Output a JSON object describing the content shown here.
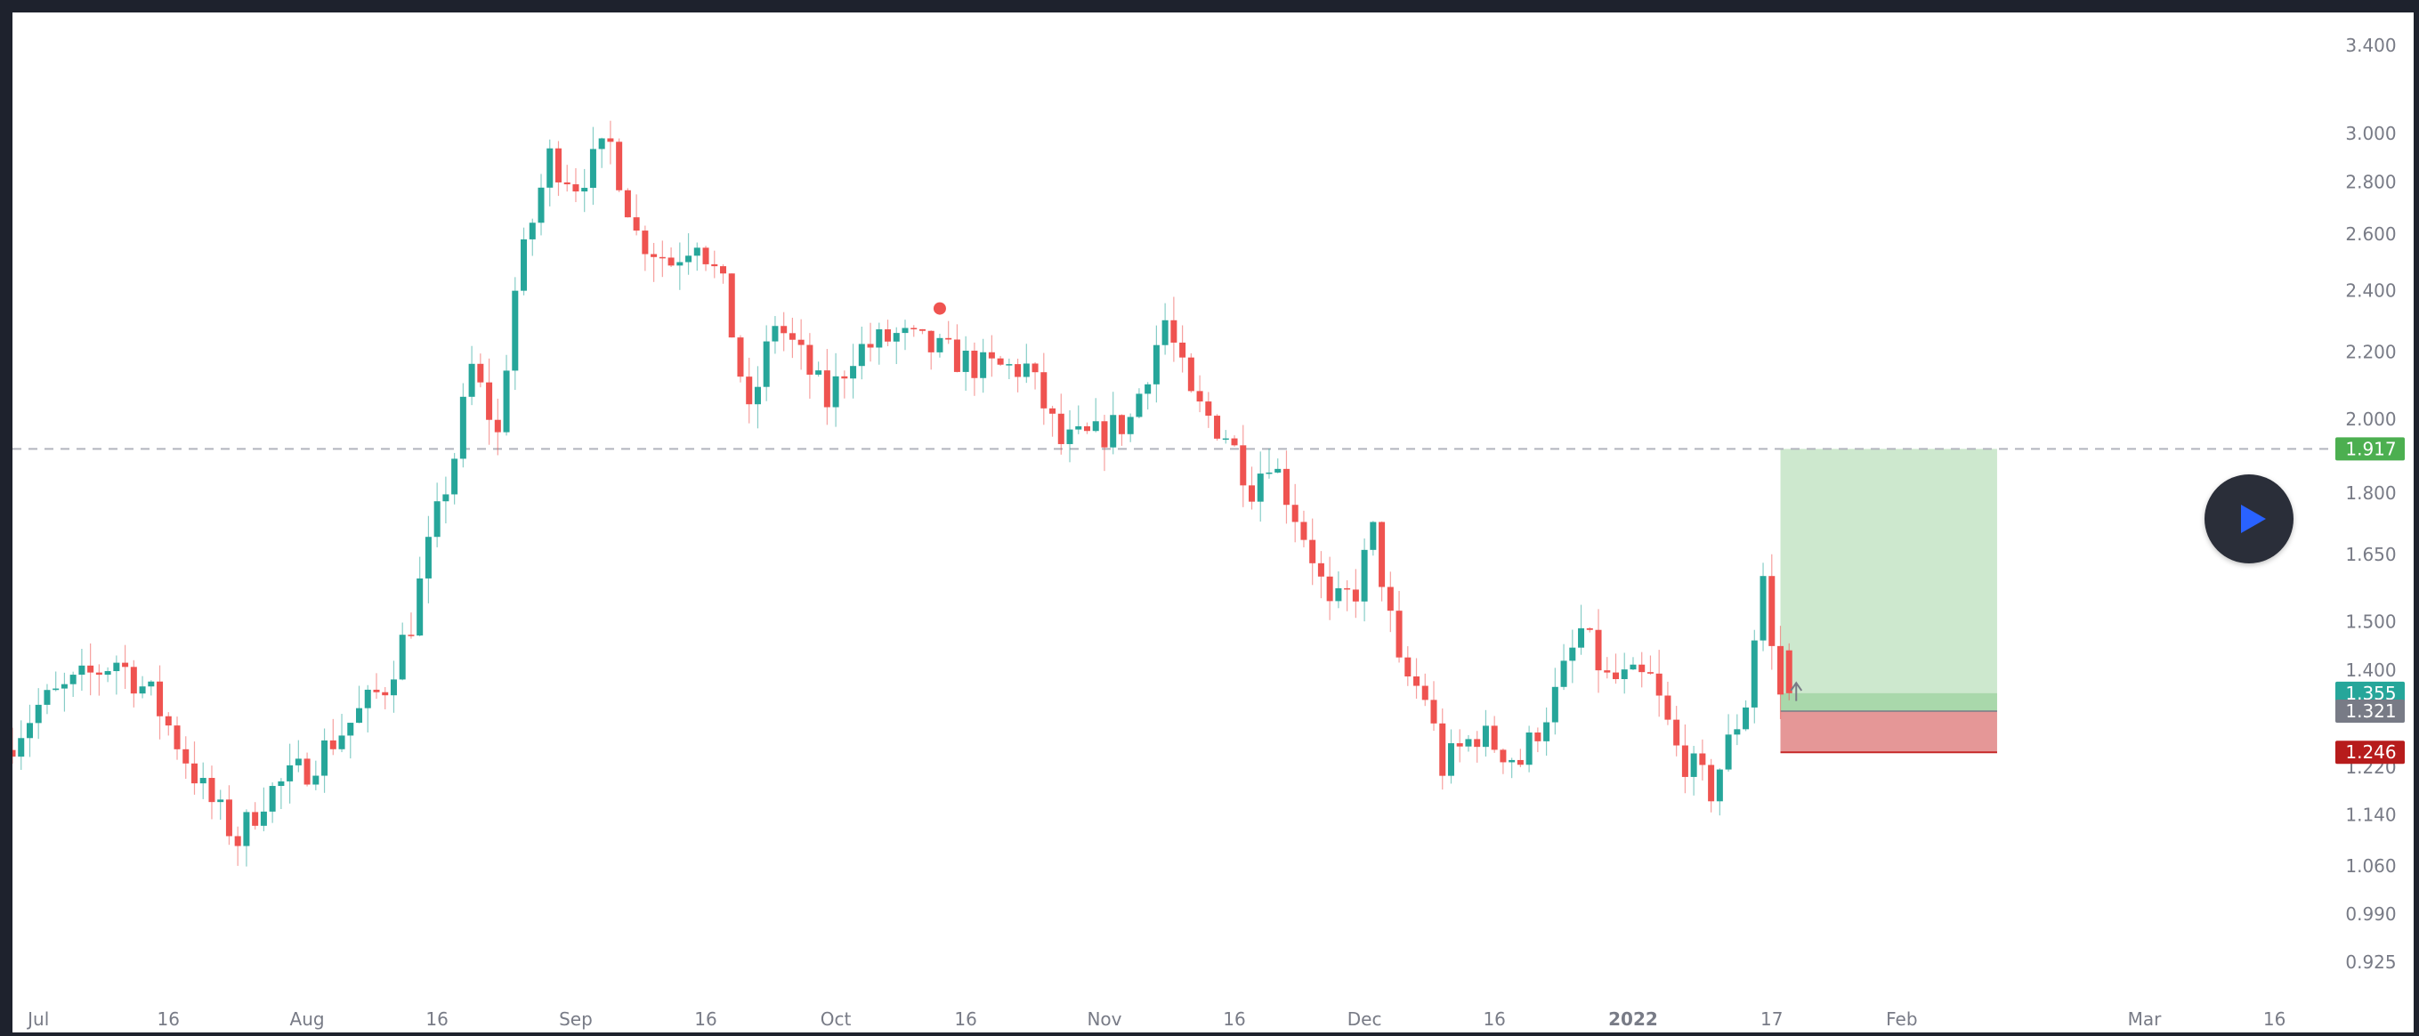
{
  "chart_data": {
    "type": "candlestick",
    "title": "",
    "xlabel": "",
    "ylabel": "",
    "scale": "log",
    "ylim": [
      0.9,
      3.5
    ],
    "grid": false,
    "x_start": "2021-06-28",
    "x_end": "2022-03-22",
    "x_tick_labels": [
      {
        "date": "2021-07-01",
        "label": "Jul"
      },
      {
        "date": "2021-07-16",
        "label": "16"
      },
      {
        "date": "2021-08-01",
        "label": "Aug"
      },
      {
        "date": "2021-08-16",
        "label": "16"
      },
      {
        "date": "2021-09-01",
        "label": "Sep"
      },
      {
        "date": "2021-09-16",
        "label": "16"
      },
      {
        "date": "2021-10-01",
        "label": "Oct"
      },
      {
        "date": "2021-10-16",
        "label": "16"
      },
      {
        "date": "2021-11-01",
        "label": "Nov"
      },
      {
        "date": "2021-11-16",
        "label": "16"
      },
      {
        "date": "2021-12-01",
        "label": "Dec"
      },
      {
        "date": "2021-12-16",
        "label": "16"
      },
      {
        "date": "2022-01-01",
        "label": "2022"
      },
      {
        "date": "2022-01-17",
        "label": "17"
      },
      {
        "date": "2022-02-01",
        "label": "Feb"
      },
      {
        "date": "2022-03-01",
        "label": "Mar"
      },
      {
        "date": "2022-03-16",
        "label": "16"
      }
    ],
    "y_tick_labels": [
      "3.400",
      "3.000",
      "2.800",
      "2.600",
      "2.400",
      "2.200",
      "2.000",
      "1.800",
      "1.650",
      "1.500",
      "1.400",
      "1.220",
      "1.140",
      "1.060",
      "0.990",
      "0.925"
    ],
    "price_badges": [
      {
        "label": "1.917",
        "value": 1.917,
        "color": "#4caf50"
      },
      {
        "label": "1.355",
        "value": 1.355,
        "color": "#26a69a"
      },
      {
        "label": "1.321",
        "value": 1.321,
        "color": "#787b86"
      },
      {
        "label": "1.246",
        "value": 1.246,
        "color": "#b71c1c"
      }
    ],
    "horizontal_line": {
      "value": 1.917,
      "style": "dashed"
    },
    "position": {
      "type": "long",
      "start": "2022-01-18",
      "end": "2022-02-12",
      "entry": 1.321,
      "target": 1.917,
      "stop": 1.246,
      "target_color": "#c8e6c9",
      "stop_color": "#e08585"
    },
    "marker": {
      "date": "2021-10-13",
      "value": 2.34,
      "color": "#ef5350"
    },
    "up_color": "#26a69a",
    "down_color": "#ef5350",
    "anchors": [
      [
        "2021-06-28",
        1.25
      ],
      [
        "2021-07-02",
        1.33
      ],
      [
        "2021-07-07",
        1.38
      ],
      [
        "2021-07-11",
        1.42
      ],
      [
        "2021-07-15",
        1.35
      ],
      [
        "2021-07-21",
        1.18
      ],
      [
        "2021-07-25",
        1.1
      ],
      [
        "2021-07-28",
        1.17
      ],
      [
        "2021-08-02",
        1.22
      ],
      [
        "2021-08-07",
        1.3
      ],
      [
        "2021-08-11",
        1.37
      ],
      [
        "2021-08-14",
        1.5
      ],
      [
        "2021-08-19",
        1.9
      ],
      [
        "2021-08-21",
        2.15
      ],
      [
        "2021-08-24",
        1.95
      ],
      [
        "2021-08-26",
        2.4
      ],
      [
        "2021-08-30",
        2.9
      ],
      [
        "2021-09-02",
        2.8
      ],
      [
        "2021-09-06",
        2.95
      ],
      [
        "2021-09-09",
        2.6
      ],
      [
        "2021-09-13",
        2.5
      ],
      [
        "2021-09-16",
        2.6
      ],
      [
        "2021-09-19",
        2.4
      ],
      [
        "2021-09-22",
        2.0
      ],
      [
        "2021-09-25",
        2.3
      ],
      [
        "2021-09-28",
        2.18
      ],
      [
        "2021-10-01",
        2.05
      ],
      [
        "2021-10-04",
        2.2
      ],
      [
        "2021-10-09",
        2.25
      ],
      [
        "2021-10-14",
        2.2
      ],
      [
        "2021-10-19",
        2.15
      ],
      [
        "2021-10-24",
        2.15
      ],
      [
        "2021-10-28",
        1.93
      ],
      [
        "2021-11-01",
        1.95
      ],
      [
        "2021-11-05",
        2.0
      ],
      [
        "2021-11-09",
        2.3
      ],
      [
        "2021-11-12",
        2.05
      ],
      [
        "2021-11-16",
        1.96
      ],
      [
        "2021-11-19",
        1.82
      ],
      [
        "2021-11-21",
        1.9
      ],
      [
        "2021-11-26",
        1.65
      ],
      [
        "2021-11-28",
        1.52
      ],
      [
        "2021-12-01",
        1.57
      ],
      [
        "2021-12-03",
        1.7
      ],
      [
        "2021-12-06",
        1.4
      ],
      [
        "2021-12-09",
        1.35
      ],
      [
        "2021-12-11",
        1.22
      ],
      [
        "2021-12-15",
        1.28
      ],
      [
        "2021-12-20",
        1.23
      ],
      [
        "2021-12-24",
        1.35
      ],
      [
        "2021-12-27",
        1.48
      ],
      [
        "2021-12-30",
        1.38
      ],
      [
        "2022-01-04",
        1.38
      ],
      [
        "2022-01-07",
        1.25
      ],
      [
        "2022-01-11",
        1.18
      ],
      [
        "2022-01-15",
        1.34
      ],
      [
        "2022-01-17",
        1.6
      ],
      [
        "2022-01-18",
        1.44
      ],
      [
        "2022-01-19",
        1.355
      ]
    ],
    "last_candle": {
      "date": "2022-01-19",
      "open": 1.44,
      "close": 1.355
    }
  }
}
